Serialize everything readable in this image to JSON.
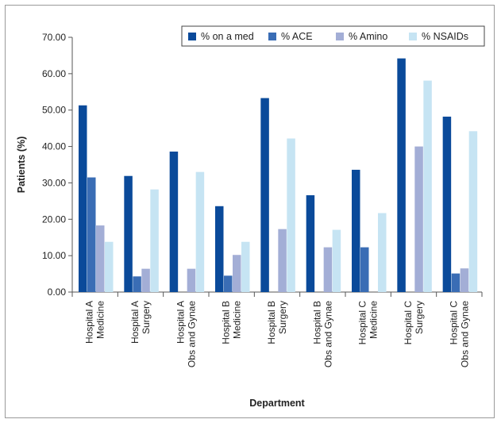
{
  "chart_data": {
    "type": "bar",
    "title": "",
    "xlabel": "Department",
    "ylabel": "Patients (%)",
    "ylim": [
      0,
      70
    ],
    "yticks": [
      "0.00",
      "10.00",
      "20.00",
      "30.00",
      "40.00",
      "50.00",
      "60.00",
      "70.00"
    ],
    "grid": false,
    "legend_position": "top-right",
    "categories": [
      [
        "Hospital A",
        "Medicine"
      ],
      [
        "Hospital A",
        "Surgery"
      ],
      [
        "Hospital A",
        "Obs and Gynae"
      ],
      [
        "Hospital B",
        "Medicine"
      ],
      [
        "Hospital B",
        "Surgery"
      ],
      [
        "Hospital B",
        "Obs and Gynae"
      ],
      [
        "Hospital C",
        "Medicine"
      ],
      [
        "Hospital C",
        "Surgery"
      ],
      [
        "Hospital C",
        "Obs and Gynae"
      ]
    ],
    "series": [
      {
        "name": "% on a med",
        "color": "#0a4a9a",
        "values": [
          51.3,
          31.9,
          38.6,
          23.6,
          53.3,
          26.6,
          33.6,
          64.2,
          48.2
        ]
      },
      {
        "name": "% ACE",
        "color": "#3a6db5",
        "values": [
          31.5,
          4.3,
          0.0,
          4.5,
          0.0,
          0.0,
          12.3,
          0.0,
          5.1
        ]
      },
      {
        "name": "% Amino",
        "color": "#a3aed6",
        "values": [
          18.3,
          6.4,
          6.4,
          10.2,
          17.3,
          12.3,
          0.0,
          40.0,
          6.5
        ]
      },
      {
        "name": "% NSAIDs",
        "color": "#c6e4f3",
        "values": [
          13.8,
          28.2,
          33.0,
          13.8,
          42.2,
          17.1,
          21.7,
          58.1,
          44.2
        ]
      }
    ]
  }
}
